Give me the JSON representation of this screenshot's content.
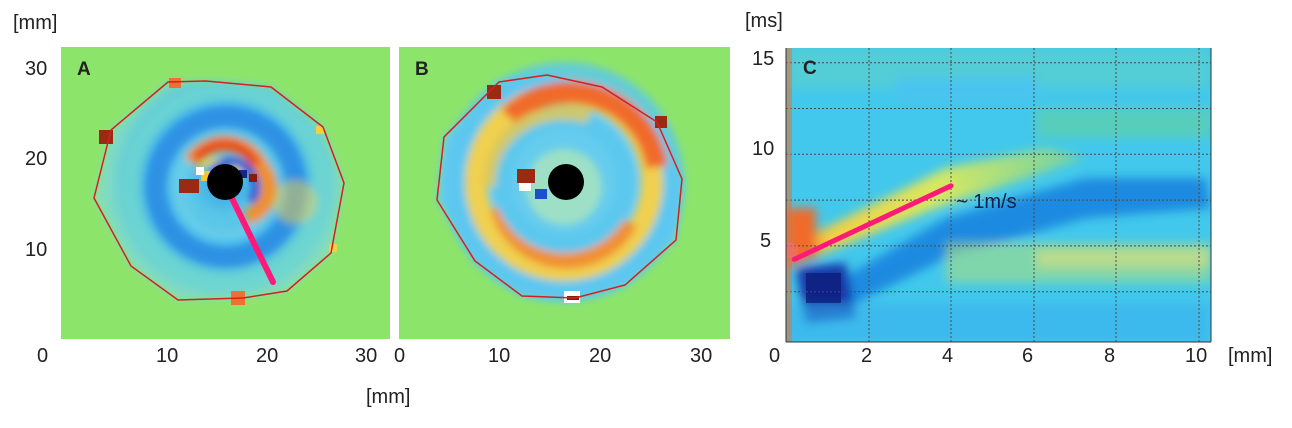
{
  "units": {
    "mm_top_left": "[mm]",
    "mm_bottom": "[mm]",
    "ms": "[ms]",
    "mm_right": "[mm]"
  },
  "panels": {
    "a": {
      "label": "A"
    },
    "b": {
      "label": "B"
    },
    "c": {
      "label": "C",
      "annotation": "~ 1m/s"
    }
  },
  "chart_data": [
    {
      "type": "heatmap",
      "title": "A",
      "xlabel": "[mm]",
      "ylabel": "[mm]",
      "xlim": [
        0,
        33
      ],
      "ylim": [
        0,
        33
      ],
      "xticks": [
        "0",
        "10",
        "20",
        "30"
      ],
      "yticks": [
        "10",
        "20",
        "30"
      ]
    },
    {
      "type": "heatmap",
      "title": "B",
      "xlabel": "[mm]",
      "xlim": [
        0,
        33
      ],
      "xticks": [
        "0",
        "10",
        "20",
        "30"
      ]
    },
    {
      "type": "heatmap",
      "title": "C",
      "xlabel": "[mm]",
      "ylabel": "[ms]",
      "xlim": [
        0,
        10.3
      ],
      "ylim": [
        0,
        16
      ],
      "xticks": [
        "0",
        "2",
        "4",
        "6",
        "8",
        "10"
      ],
      "yticks": [
        "5",
        "10",
        "15"
      ],
      "fit_line": {
        "x": [
          0.2,
          4.0
        ],
        "y": [
          4.5,
          8.5
        ]
      },
      "annotation": "~ 1m/s"
    }
  ]
}
